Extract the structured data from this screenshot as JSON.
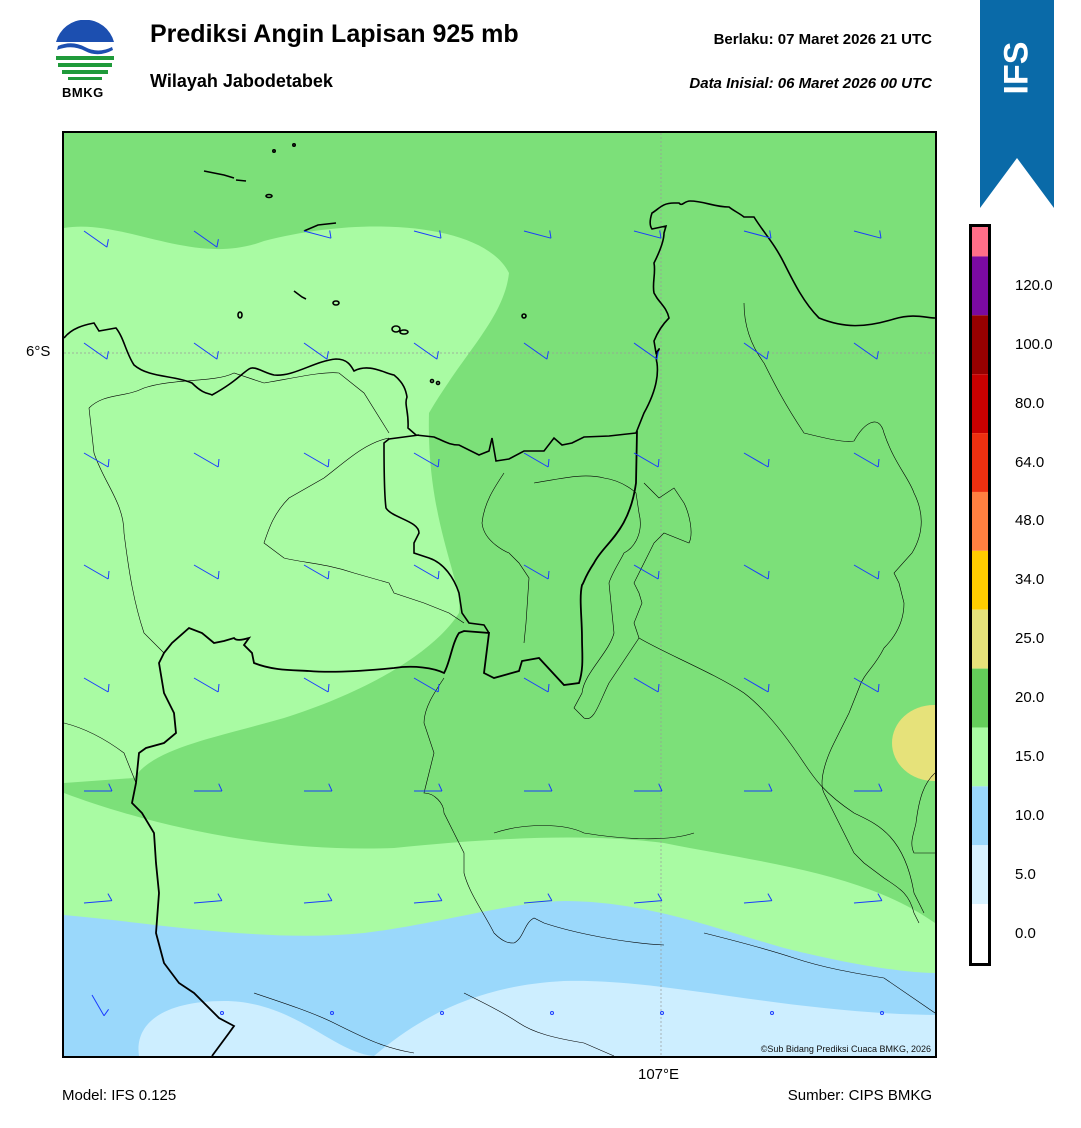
{
  "header": {
    "title": "Prediksi Angin Lapisan 925 mb",
    "subtitle": "Wilayah Jabodetabek",
    "valid_label": "Berlaku:  07 Maret 2026 21 UTC",
    "initial_label": "Data Inisial:  06 Maret 2026 00 UTC"
  },
  "logo": {
    "text": "BMKG",
    "icon": "bmkg-logo-icon"
  },
  "ribbon": {
    "text": "IFS",
    "color": "#0a6aa8"
  },
  "map": {
    "lat_label": "6°S",
    "lon_label": "107°E",
    "copyright": "©Sub Bidang Prediksi Cuaca BMKG, 2026",
    "colors": {
      "band_0_5": "#cdeeff",
      "band_5_10": "#9ad8fb",
      "band_10_15": "#a9fba3",
      "band_15_20": "#7ce079",
      "band_20_25": "#e6e27a"
    }
  },
  "colorbar": {
    "ticks": [
      "0.0",
      "5.0",
      "10.0",
      "15.0",
      "20.0",
      "25.0",
      "34.0",
      "48.0",
      "64.0",
      "80.0",
      "100.0",
      "120.0"
    ],
    "colors": [
      "#ffffff",
      "#d8f2ff",
      "#9ad8fb",
      "#a9fba3",
      "#64cd5a",
      "#e6e27a",
      "#ffcc00",
      "#ff8040",
      "#ee3010",
      "#c80000",
      "#960000",
      "#7a0aa0",
      "#ff6e88"
    ]
  },
  "footer": {
    "model": "Model: IFS 0.125",
    "source": "Sumber: CIPS BMKG"
  }
}
